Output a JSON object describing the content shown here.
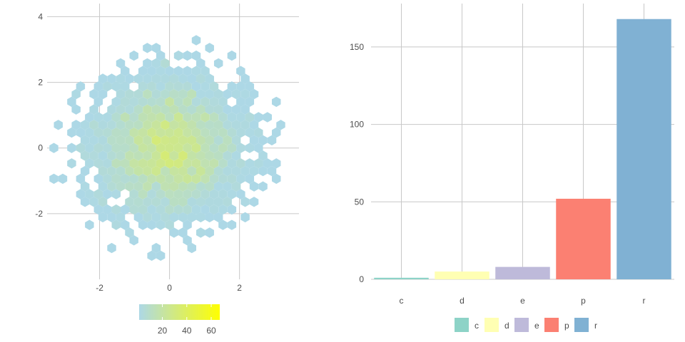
{
  "chart_data": [
    {
      "type": "hexbin",
      "xlim": [
        -3.5,
        3.7
      ],
      "ylim": [
        -4,
        4.4
      ],
      "x_ticks": [
        -2,
        0,
        2
      ],
      "x_tick_labels": [
        "-2",
        "0",
        "2"
      ],
      "y_ticks": [
        -2,
        0,
        2,
        4
      ],
      "y_tick_labels": [
        "-2",
        "0",
        "2",
        "4"
      ],
      "grid": true,
      "distribution": {
        "center": [
          0,
          0
        ],
        "sd": [
          1,
          1
        ],
        "n_points": 3000
      },
      "colorbar": {
        "position": "bottom",
        "ticks": [
          20,
          40,
          60
        ],
        "tick_labels": [
          "20",
          "40",
          "60"
        ],
        "range": [
          1,
          67
        ],
        "color_low": "#add8e6",
        "color_high": "#ffff00"
      }
    },
    {
      "type": "bar",
      "categories": [
        "c",
        "d",
        "e",
        "p",
        "r"
      ],
      "values": [
        1,
        5,
        8,
        52,
        168
      ],
      "colors": [
        "#8dd3c7",
        "#ffffb3",
        "#bebada",
        "#fb8072",
        "#80b1d3"
      ],
      "ylim": [
        0,
        178
      ],
      "y_ticks": [
        0,
        50,
        100,
        150
      ],
      "y_tick_labels": [
        "0",
        "50",
        "100",
        "150"
      ],
      "grid": true,
      "legend": {
        "position": "bottom",
        "entries": [
          "c",
          "d",
          "e",
          "p",
          "r"
        ]
      }
    }
  ]
}
